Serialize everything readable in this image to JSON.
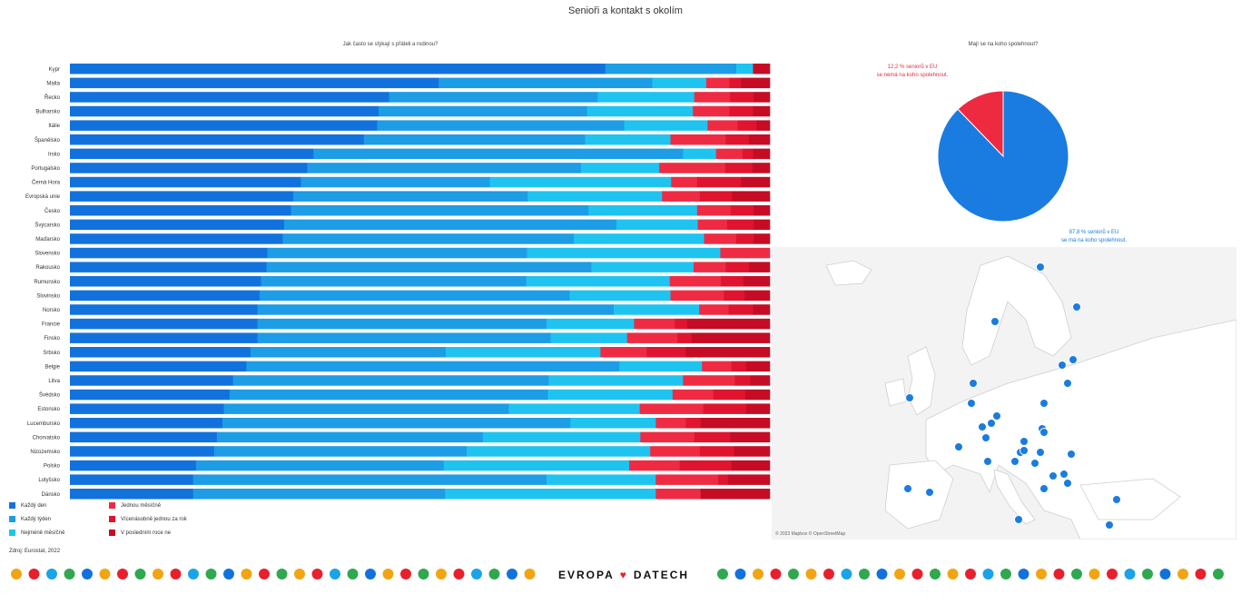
{
  "title": "Senioři a kontakt s okolím",
  "bar_section": {
    "subtitle": "Jak často se stýkají s přáteli a rodinou?"
  },
  "pie_section": {
    "subtitle": "Mají se na koho spolehnout?",
    "note_no": [
      "12,2 % seniorů v EU",
      "se nemá na koho spolehnout."
    ],
    "note_yes": [
      "87,8 % seniorů v EU",
      "se má na koho spolehnout."
    ]
  },
  "map": {
    "credit": "© 2023 Mapbox © OpenStreetMap"
  },
  "source": "Zdroj: Eurostat, 2022",
  "brand": {
    "left": "EVROPA",
    "mark": "♥",
    "right": "DATECH"
  },
  "colors": {
    "dark_blue": "#1272dd",
    "mid_blue": "#1c9de6",
    "light_blue": "#1ec4ef",
    "pink": "#ef2b44",
    "red": "#e0142e",
    "dark_red": "#c60c25",
    "pie_blue": "#1a7ce0",
    "pie_red": "#ee2a41"
  },
  "chart_data": [
    {
      "type": "bar",
      "stacked": true,
      "orientation": "horizontal",
      "title": "Jak často se stýkají s přáteli a rodinou?",
      "categories": [
        "Kypr",
        "Malta",
        "Řecko",
        "Bulharsko",
        "Itálie",
        "Španělsko",
        "Irsko",
        "Portugalsko",
        "Černá Hora",
        "Evropská unie",
        "Česko",
        "Švýcarsko",
        "Maďarsko",
        "Slovensko",
        "Rakousko",
        "Rumunsko",
        "Slovinsko",
        "Norsko",
        "Francie",
        "Finsko",
        "Srbsko",
        "Belgie",
        "Litva",
        "Švédsko",
        "Estonsko",
        "Lucembursko",
        "Chorvatsko",
        "Nizozemsko",
        "Polsko",
        "Lotyšsko",
        "Dánsko"
      ],
      "xlim": [
        0,
        100
      ],
      "series": [
        {
          "name": "Každý den",
          "color": "#1272dd",
          "values": [
            76.5,
            52.7,
            45.6,
            44.1,
            43.9,
            42.0,
            34.8,
            33.9,
            33.0,
            31.9,
            31.6,
            30.6,
            30.4,
            28.3,
            28.1,
            27.3,
            27.1,
            26.8,
            26.8,
            26.8,
            25.8,
            25.2,
            23.3,
            22.8,
            22.0,
            21.8,
            21.0,
            20.6,
            18.0,
            17.6,
            17.6
          ]
        },
        {
          "name": "Každý týden",
          "color": "#1c9de6",
          "values": [
            18.7,
            30.5,
            29.8,
            29.8,
            35.3,
            31.6,
            52.8,
            39.1,
            27.0,
            33.5,
            42.5,
            47.5,
            41.6,
            37.2,
            46.4,
            37.9,
            44.3,
            50.9,
            41.3,
            41.9,
            27.9,
            53.3,
            45.1,
            45.5,
            40.7,
            49.7,
            38.0,
            36.1,
            35.4,
            50.5,
            36.0
          ]
        },
        {
          "name": "Nejméně měsíčně",
          "color": "#1ec4ef",
          "values": [
            2.4,
            7.7,
            13.8,
            15.1,
            11.9,
            12.2,
            4.7,
            11.2,
            25.9,
            19.2,
            15.5,
            11.6,
            18.6,
            27.7,
            14.6,
            20.5,
            14.4,
            12.2,
            12.5,
            10.9,
            22.1,
            11.8,
            19.2,
            17.8,
            18.7,
            12.2,
            22.5,
            26.2,
            26.5,
            15.6,
            30.1
          ]
        },
        {
          "name": "Jednou měsíčně",
          "color": "#ef2b44",
          "values": [
            0,
            3.3,
            5.1,
            5.2,
            4.3,
            7.9,
            3.8,
            9.4,
            3.7,
            5.4,
            4.8,
            4.2,
            4.6,
            7.1,
            4.6,
            7.3,
            7.6,
            4.2,
            5.8,
            7.2,
            6.6,
            4.2,
            7.4,
            5.8,
            9.1,
            4.3,
            7.7,
            7.1,
            7.2,
            8.9,
            6.4
          ]
        },
        {
          "name": "Vícenásobně jednou za rok",
          "color": "#e0142e",
          "values": [
            0,
            1.7,
            3.4,
            3.4,
            2.7,
            3.3,
            1.5,
            3.9,
            6.3,
            4.6,
            3.3,
            3.8,
            2.5,
            0,
            3.3,
            3.2,
            3.0,
            3.5,
            1.8,
            2.0,
            5.6,
            2.1,
            2.2,
            4.6,
            6.1,
            2.1,
            5.1,
            4.9,
            7.4,
            1.4,
            0
          ]
        },
        {
          "name": "V posledním roce ne",
          "color": "#c60c25",
          "values": [
            2.4,
            4.1,
            2.3,
            2.4,
            1.9,
            3.0,
            2.4,
            2.5,
            4.1,
            5.4,
            2.3,
            2.3,
            2.3,
            0,
            3.0,
            3.8,
            3.6,
            2.4,
            11.8,
            11.2,
            12.0,
            3.4,
            2.8,
            3.5,
            3.4,
            9.9,
            5.7,
            5.1,
            5.5,
            6.0,
            9.9
          ]
        }
      ]
    },
    {
      "type": "pie",
      "title": "Mají se na koho spolehnout?",
      "slices": [
        {
          "label": "se má na koho spolehnout",
          "value": 87.8,
          "color": "#1a7ce0"
        },
        {
          "label": "se nemá na koho spolehnout",
          "value": 12.2,
          "color": "#ee2a41"
        }
      ]
    }
  ],
  "legend": [
    {
      "label": "Každý den",
      "color": "#1272dd"
    },
    {
      "label": "Každý týden",
      "color": "#1c9de6"
    },
    {
      "label": "Nejméně měsíčně",
      "color": "#1ec4ef"
    },
    {
      "label": "Jednou měsíčně",
      "color": "#ef2b44"
    },
    {
      "label": "Vícenásobně jednou za rok",
      "color": "#e0142e"
    },
    {
      "label": "V posledním roce ne",
      "color": "#c60c25"
    }
  ]
}
